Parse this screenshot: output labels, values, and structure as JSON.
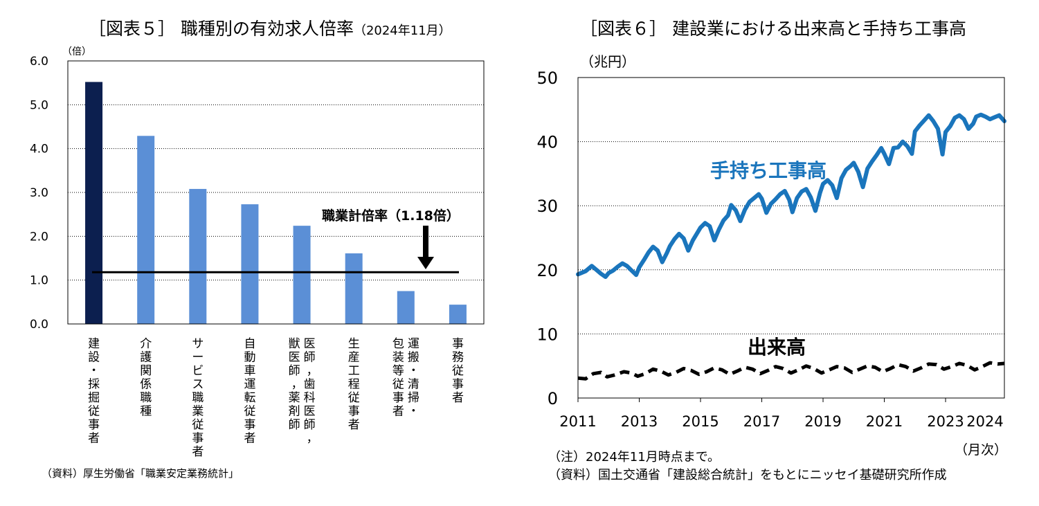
{
  "left": {
    "title_main": "［図表５］ 職種別の有効求人倍率",
    "title_sub": "（2024年11月）",
    "source": "（資料）厚生労働省「職業安定業務統計」"
  },
  "right": {
    "title": "［図表６］ 建設業における出来高と手持ち工事高",
    "note": "（注）2024年11月時点まで。",
    "source": "（資料）国土交通省「建設総合統計」をもとにニッセイ基礎研究所作成"
  },
  "chart_data": [
    {
      "type": "bar",
      "unit_label": "（倍）",
      "categories": [
        "建設・採掘従事者",
        "介護関係職種",
        "サービス職業従事者",
        "自動車運転従事者",
        "医師，歯科医師，獣医師，薬剤師",
        "生産工程従事者",
        "運搬・清掃・包装等従事者",
        "事務従事者"
      ],
      "category_lines": [
        [
          "建設・採掘従事者"
        ],
        [
          "介護関係職種"
        ],
        [
          "サービス職業従事者"
        ],
        [
          "自動車運転従事者"
        ],
        [
          "医師，歯科医師，",
          "獣医師，薬剤師"
        ],
        [
          "生産工程従事者"
        ],
        [
          "運搬・清掃・",
          "包装等従事者"
        ],
        [
          "事務従事者"
        ]
      ],
      "values": [
        5.52,
        4.29,
        3.08,
        2.73,
        2.24,
        1.61,
        0.75,
        0.44
      ],
      "highlight_color": "#0c1f4f",
      "bar_color": "#5b8fd6",
      "ylim": [
        0,
        6
      ],
      "yticks": [
        "0.0",
        "1.0",
        "2.0",
        "3.0",
        "4.0",
        "5.0",
        "6.0"
      ],
      "reference_line": 1.18,
      "annotation": "職業計倍率（1.18倍）",
      "grid": true
    },
    {
      "type": "line",
      "unit_label": "（兆円）",
      "xlabel": "（月次）",
      "xlim": [
        2011,
        2024.92
      ],
      "xticks": [
        "2011",
        "2013",
        "2015",
        "2017",
        "2019",
        "2021",
        "2023",
        "2024"
      ],
      "ylim": [
        0,
        50
      ],
      "yticks": [
        "0",
        "10",
        "20",
        "30",
        "40",
        "50"
      ],
      "grid": true,
      "series": [
        {
          "name": "手持ち工事高",
          "color": "#1a75bc",
          "x": [
            2011.0,
            2011.25,
            2011.45,
            2011.6,
            2011.75,
            2011.9,
            2012.0,
            2012.15,
            2012.3,
            2012.45,
            2012.6,
            2012.75,
            2012.9,
            2013.0,
            2013.15,
            2013.3,
            2013.45,
            2013.6,
            2013.75,
            2013.9,
            2014.0,
            2014.15,
            2014.3,
            2014.45,
            2014.6,
            2014.75,
            2014.9,
            2015.0,
            2015.15,
            2015.3,
            2015.45,
            2015.6,
            2015.75,
            2015.9,
            2016.0,
            2016.15,
            2016.3,
            2016.45,
            2016.6,
            2016.75,
            2016.9,
            2017.0,
            2017.15,
            2017.3,
            2017.45,
            2017.6,
            2017.75,
            2017.9,
            2018.0,
            2018.15,
            2018.3,
            2018.45,
            2018.6,
            2018.75,
            2018.9,
            2019.0,
            2019.15,
            2019.3,
            2019.45,
            2019.6,
            2019.75,
            2019.9,
            2020.0,
            2020.15,
            2020.3,
            2020.45,
            2020.6,
            2020.75,
            2020.9,
            2021.0,
            2021.15,
            2021.3,
            2021.45,
            2021.6,
            2021.75,
            2021.9,
            2022.0,
            2022.15,
            2022.3,
            2022.45,
            2022.6,
            2022.75,
            2022.9,
            2023.0,
            2023.15,
            2023.3,
            2023.45,
            2023.6,
            2023.75,
            2023.9,
            2024.0,
            2024.15,
            2024.3,
            2024.45,
            2024.6,
            2024.75,
            2024.92
          ],
          "y": [
            19.3,
            19.8,
            20.6,
            20.0,
            19.4,
            18.9,
            19.5,
            19.9,
            20.5,
            21.0,
            20.6,
            19.9,
            19.2,
            20.4,
            21.5,
            22.7,
            23.6,
            23.0,
            21.2,
            22.6,
            23.7,
            24.8,
            25.6,
            24.9,
            23.0,
            24.6,
            25.8,
            26.6,
            27.3,
            26.8,
            24.6,
            26.3,
            27.7,
            28.5,
            30.1,
            29.3,
            27.6,
            29.4,
            30.6,
            31.2,
            31.8,
            31.1,
            28.9,
            30.3,
            31.0,
            31.8,
            32.3,
            30.9,
            29.0,
            31.2,
            32.2,
            32.6,
            31.3,
            29.2,
            32.0,
            33.4,
            34.0,
            33.2,
            31.2,
            34.3,
            35.6,
            36.2,
            36.7,
            35.3,
            32.9,
            35.8,
            36.9,
            37.9,
            39.0,
            38.1,
            36.5,
            39.0,
            39.1,
            40.0,
            39.3,
            38.1,
            41.6,
            42.5,
            43.3,
            44.1,
            43.2,
            42.0,
            38.0,
            41.5,
            42.4,
            43.7,
            44.1,
            43.5,
            42.0,
            42.8,
            43.9,
            44.2,
            43.9,
            43.5,
            43.8,
            44.1,
            43.2
          ]
        },
        {
          "name": "出来高",
          "color": "#000000",
          "x": [
            2011.0,
            2011.25,
            2011.5,
            2011.75,
            2011.95,
            2012.2,
            2012.5,
            2012.75,
            2012.95,
            2013.2,
            2013.45,
            2013.7,
            2013.95,
            2014.2,
            2014.45,
            2014.7,
            2014.95,
            2015.2,
            2015.45,
            2015.7,
            2015.95,
            2016.2,
            2016.45,
            2016.7,
            2016.95,
            2017.2,
            2017.45,
            2017.7,
            2017.95,
            2018.2,
            2018.45,
            2018.7,
            2018.95,
            2019.2,
            2019.45,
            2019.7,
            2019.95,
            2020.2,
            2020.45,
            2020.7,
            2020.95,
            2021.2,
            2021.45,
            2021.7,
            2021.95,
            2022.2,
            2022.45,
            2022.7,
            2022.95,
            2023.2,
            2023.45,
            2023.7,
            2023.95,
            2024.2,
            2024.45,
            2024.7,
            2024.92
          ],
          "y": [
            3.1,
            3.0,
            3.8,
            4.0,
            3.3,
            3.6,
            4.1,
            3.9,
            3.4,
            3.8,
            4.5,
            4.2,
            3.6,
            4.0,
            4.6,
            4.3,
            3.7,
            4.1,
            4.7,
            4.4,
            3.7,
            4.2,
            4.8,
            4.5,
            3.8,
            4.3,
            4.9,
            4.6,
            3.9,
            4.4,
            5.0,
            4.6,
            3.9,
            4.4,
            4.9,
            4.7,
            4.0,
            4.5,
            5.0,
            4.8,
            4.1,
            4.6,
            5.2,
            4.9,
            4.2,
            4.7,
            5.3,
            5.2,
            4.5,
            4.9,
            5.4,
            5.1,
            4.4,
            4.9,
            5.5,
            5.3,
            5.4
          ]
        }
      ]
    }
  ]
}
